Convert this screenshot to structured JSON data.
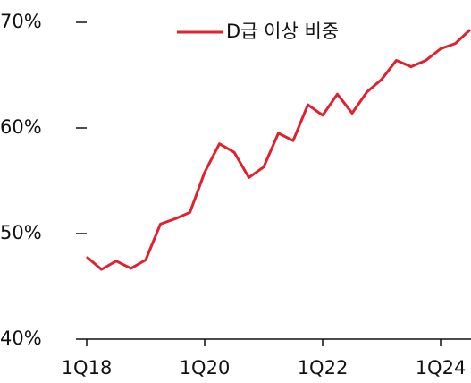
{
  "chart_data": {
    "type": "line",
    "categories": [
      "1Q18",
      null,
      null,
      null,
      null,
      null,
      null,
      null,
      "1Q20",
      null,
      null,
      null,
      null,
      null,
      null,
      null,
      "1Q22",
      null,
      null,
      null,
      null,
      null,
      null,
      null,
      "1Q24",
      null,
      null
    ],
    "series": [
      {
        "name": "D급 이상 비중",
        "color": "#e0212f",
        "values": [
          47.8,
          46.6,
          47.4,
          46.7,
          47.5,
          50.9,
          51.4,
          52.0,
          55.8,
          58.5,
          57.7,
          55.3,
          56.3,
          59.5,
          58.8,
          62.2,
          61.2,
          63.2,
          61.4,
          63.4,
          64.6,
          66.4,
          65.8,
          66.4,
          67.5,
          68.0,
          69.3
        ]
      }
    ],
    "ylim": [
      40,
      70
    ],
    "yticks": [
      {
        "value": 40,
        "label": "40%"
      },
      {
        "value": 50,
        "label": "50%"
      },
      {
        "value": 60,
        "label": "60%"
      },
      {
        "value": 70,
        "label": "70%"
      }
    ],
    "grid": false,
    "legend": "top"
  }
}
